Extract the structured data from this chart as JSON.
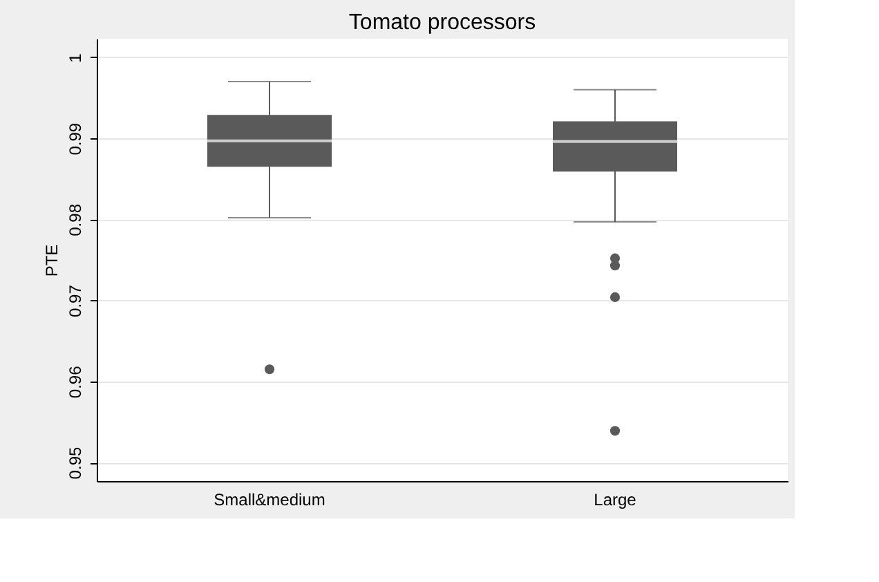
{
  "chart_data": {
    "type": "box",
    "title": "Tomato processors",
    "ylabel": "PTE",
    "categories": [
      "Small&medium",
      "Large"
    ],
    "boxes": [
      {
        "low": 0.9802,
        "q1": 0.9865,
        "median": 0.9897,
        "q3": 0.9929,
        "high": 0.997,
        "outliers": [
          0.9615
        ]
      },
      {
        "low": 0.9797,
        "q1": 0.9859,
        "median": 0.9896,
        "q3": 0.9921,
        "high": 0.996,
        "outliers": [
          0.9752,
          0.9743,
          0.9704,
          0.9539
        ]
      }
    ],
    "color": "#5a5a5a",
    "ylim": [
      0.9477,
      1.0023
    ],
    "yticks": [
      0.95,
      0.96,
      0.97,
      0.98,
      0.99,
      1
    ],
    "grid": "y"
  }
}
